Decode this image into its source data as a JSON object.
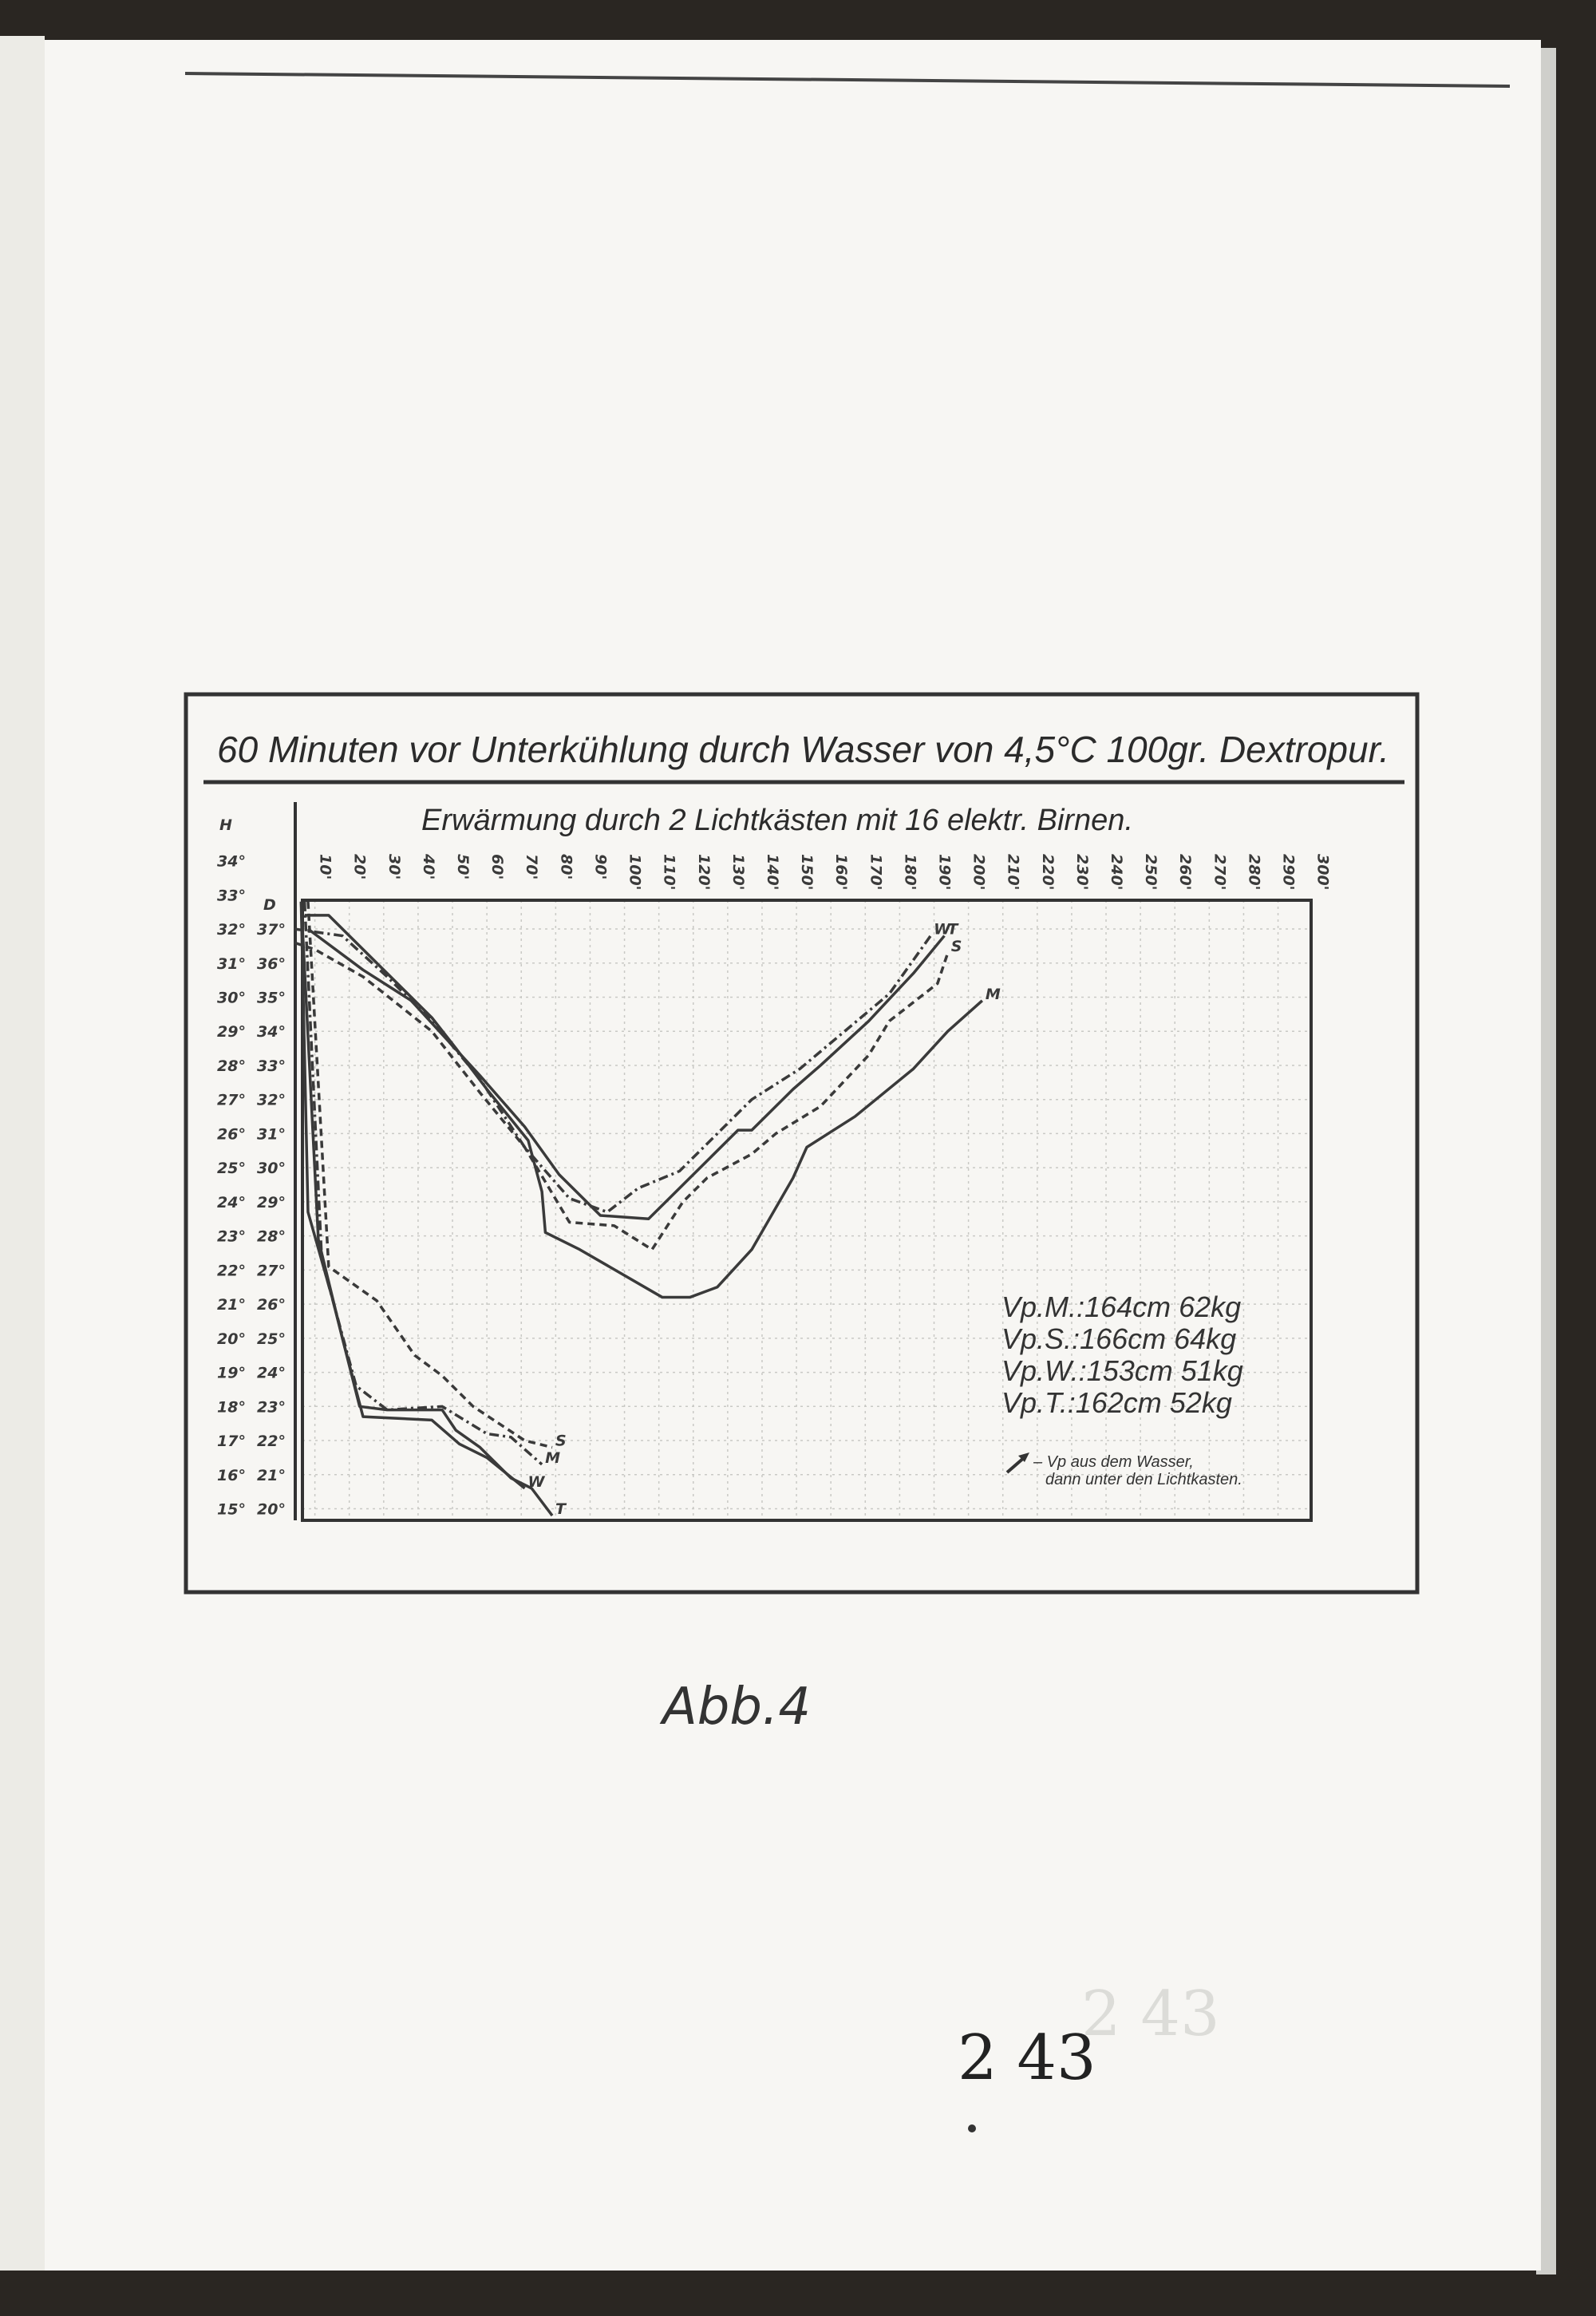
{
  "page": {
    "caption": "Abb.4",
    "page_number": "2 43",
    "stamp_number": "2 43"
  },
  "chart_data": {
    "type": "line",
    "title": "60 Minuten vor Unterkühlung durch Wasser von 4,5°C 100gr. Dextropur.",
    "subtitle": "Erwärmung durch 2 Lichtkästen mit 16 elektr. Birnen.",
    "x_ticks": [
      "10'",
      "20'",
      "30'",
      "40'",
      "50'",
      "60'",
      "70'",
      "80'",
      "90'",
      "100'",
      "110'",
      "120'",
      "130'",
      "140'",
      "150'",
      "160'",
      "170'",
      "180'",
      "190'",
      "200'",
      "210'",
      "220'",
      "230'",
      "240'",
      "250'",
      "260'",
      "270'",
      "280'",
      "290'",
      "300'"
    ],
    "xlim": [
      0,
      300
    ],
    "y_axes": [
      {
        "label": "H",
        "ticks": [
          "34°",
          "33°",
          "32°",
          "31°",
          "30°",
          "29°",
          "28°",
          "27°",
          "26°",
          "25°",
          "24°",
          "23°",
          "22°",
          "21°",
          "20°",
          "19°",
          "18°",
          "17°",
          "16°",
          "15°"
        ],
        "ylim": [
          15,
          34
        ]
      },
      {
        "label": "D",
        "ticks": [
          "37°",
          "36°",
          "35°",
          "34°",
          "33°",
          "32°",
          "31°",
          "30°",
          "29°",
          "28°",
          "27°",
          "26°",
          "25°",
          "24°",
          "23°",
          "22°",
          "21°",
          "20°"
        ],
        "ylim": [
          20,
          37
        ]
      }
    ],
    "grid": true,
    "series": [
      {
        "name": "M",
        "axis": "D",
        "style": "solid",
        "points": [
          [
            7,
            37.4
          ],
          [
            14,
            37.4
          ],
          [
            24,
            36.4
          ],
          [
            44,
            34.4
          ],
          [
            51,
            33.5
          ],
          [
            60,
            32.3
          ],
          [
            72,
            30.8
          ],
          [
            76,
            29.3
          ],
          [
            77,
            28.1
          ],
          [
            87,
            27.6
          ],
          [
            111,
            26.2
          ],
          [
            119,
            26.2
          ],
          [
            127,
            26.5
          ],
          [
            137,
            27.6
          ],
          [
            149,
            29.7
          ],
          [
            153,
            30.6
          ],
          [
            167,
            31.5
          ],
          [
            184,
            32.9
          ],
          [
            194,
            34.0
          ],
          [
            204,
            34.9
          ]
        ]
      },
      {
        "name": "T",
        "axis": "D",
        "style": "solid",
        "points": [
          [
            8,
            37.0
          ],
          [
            24,
            35.8
          ],
          [
            38,
            34.9
          ],
          [
            58,
            32.7
          ],
          [
            71,
            31.2
          ],
          [
            81,
            29.8
          ],
          [
            93,
            28.6
          ],
          [
            107,
            28.5
          ],
          [
            115,
            29.3
          ],
          [
            124,
            30.2
          ],
          [
            133,
            31.1
          ],
          [
            137,
            31.1
          ],
          [
            149,
            32.3
          ],
          [
            157,
            33.0
          ],
          [
            171,
            34.3
          ],
          [
            184,
            35.7
          ],
          [
            193,
            36.8
          ]
        ]
      },
      {
        "name": "S",
        "axis": "D",
        "style": "dashed",
        "points": [
          [
            4,
            36.6
          ],
          [
            10,
            36.4
          ],
          [
            24,
            35.6
          ],
          [
            44,
            34.0
          ],
          [
            58,
            32.2
          ],
          [
            71,
            30.6
          ],
          [
            84,
            28.4
          ],
          [
            97,
            28.3
          ],
          [
            108,
            27.6
          ],
          [
            117,
            29.0
          ],
          [
            124,
            29.7
          ],
          [
            137,
            30.4
          ],
          [
            144,
            31.0
          ],
          [
            157,
            31.8
          ],
          [
            171,
            33.3
          ],
          [
            177,
            34.3
          ],
          [
            191,
            35.4
          ],
          [
            194,
            36.3
          ]
        ]
      },
      {
        "name": "W",
        "axis": "D",
        "style": "dashdot",
        "points": [
          [
            4,
            37.0
          ],
          [
            18,
            36.8
          ],
          [
            31,
            35.6
          ],
          [
            44,
            34.3
          ],
          [
            58,
            32.6
          ],
          [
            71,
            30.6
          ],
          [
            84,
            29.1
          ],
          [
            95,
            28.7
          ],
          [
            104,
            29.4
          ],
          [
            116,
            29.9
          ],
          [
            128,
            31.1
          ],
          [
            137,
            32.0
          ],
          [
            151,
            32.9
          ],
          [
            164,
            34.0
          ],
          [
            177,
            35.1
          ],
          [
            189,
            36.8
          ]
        ]
      },
      {
        "name": "T",
        "axis": "H",
        "style": "solid",
        "points": [
          [
            6,
            32.8
          ],
          [
            8,
            23.7
          ],
          [
            15,
            21.2
          ],
          [
            23,
            18.0
          ],
          [
            31,
            17.9
          ],
          [
            47,
            17.9
          ],
          [
            51,
            17.3
          ],
          [
            58,
            16.8
          ],
          [
            67,
            15.9
          ],
          [
            73,
            15.6
          ],
          [
            79,
            14.8
          ]
        ]
      },
      {
        "name": "W",
        "axis": "H",
        "style": "solid",
        "points": [
          [
            6,
            32.8
          ],
          [
            11,
            22.9
          ],
          [
            18,
            20.0
          ],
          [
            24,
            17.7
          ],
          [
            44,
            17.6
          ],
          [
            52,
            16.9
          ],
          [
            60,
            16.5
          ],
          [
            71,
            15.6
          ]
        ]
      },
      {
        "name": "M",
        "axis": "H",
        "style": "dashdot",
        "points": [
          [
            7,
            32.8
          ],
          [
            12,
            22.3
          ],
          [
            22,
            18.6
          ],
          [
            31,
            17.9
          ],
          [
            47,
            18.0
          ],
          [
            60,
            17.2
          ],
          [
            67,
            17.1
          ],
          [
            76,
            16.3
          ]
        ]
      },
      {
        "name": "S",
        "axis": "H",
        "style": "dashed",
        "points": [
          [
            8,
            32.8
          ],
          [
            14,
            22.1
          ],
          [
            28,
            21.1
          ],
          [
            39,
            19.5
          ],
          [
            47,
            18.9
          ],
          [
            56,
            18.0
          ],
          [
            71,
            17.0
          ],
          [
            79,
            16.8
          ]
        ]
      }
    ],
    "legend": {
      "placement": "bottom-right",
      "entries": [
        "Vp.M.:164cm 62kg",
        "Vp.S.:166cm 64kg",
        "Vp.W.:153cm 51kg",
        "Vp.T.:162cm 52kg"
      ],
      "note_line1": "– Vp aus dem Wasser,",
      "note_line2": "dann unter den Lichtkasten."
    },
    "colors": {
      "ink": "#3a3a3a",
      "paper": "#f7f6f3",
      "background": "#2a2622"
    }
  }
}
